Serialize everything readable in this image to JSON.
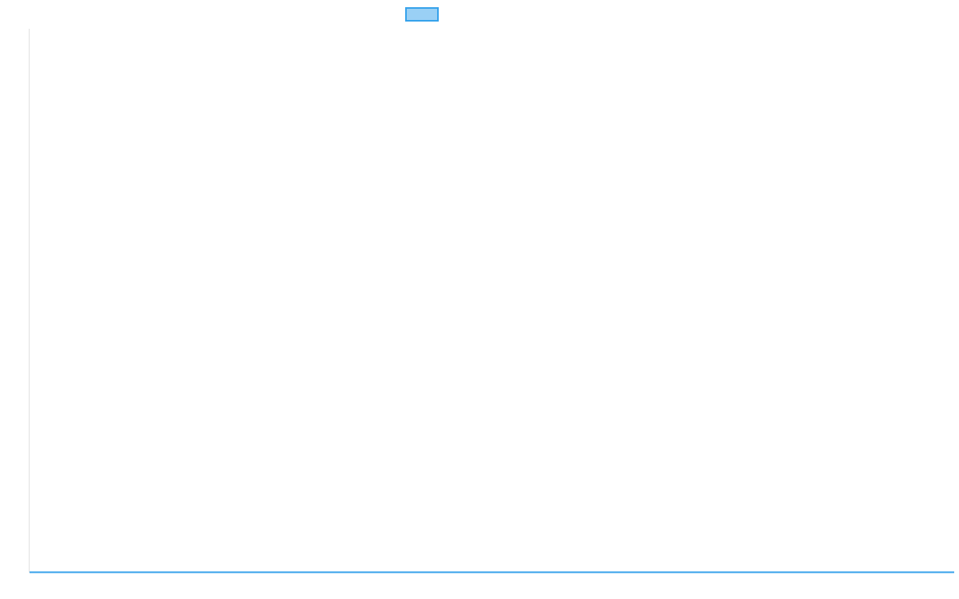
{
  "chart_data": {
    "type": "line",
    "title": "",
    "xlabel": "",
    "ylabel": "",
    "legend": {
      "placement": "top",
      "entries": [
        {
          "name": "",
          "color": "#36a2eb",
          "fill": "#9ad0f5"
        }
      ]
    },
    "grid": false,
    "series": [
      {
        "values": [
          0,
          0
        ]
      }
    ]
  }
}
